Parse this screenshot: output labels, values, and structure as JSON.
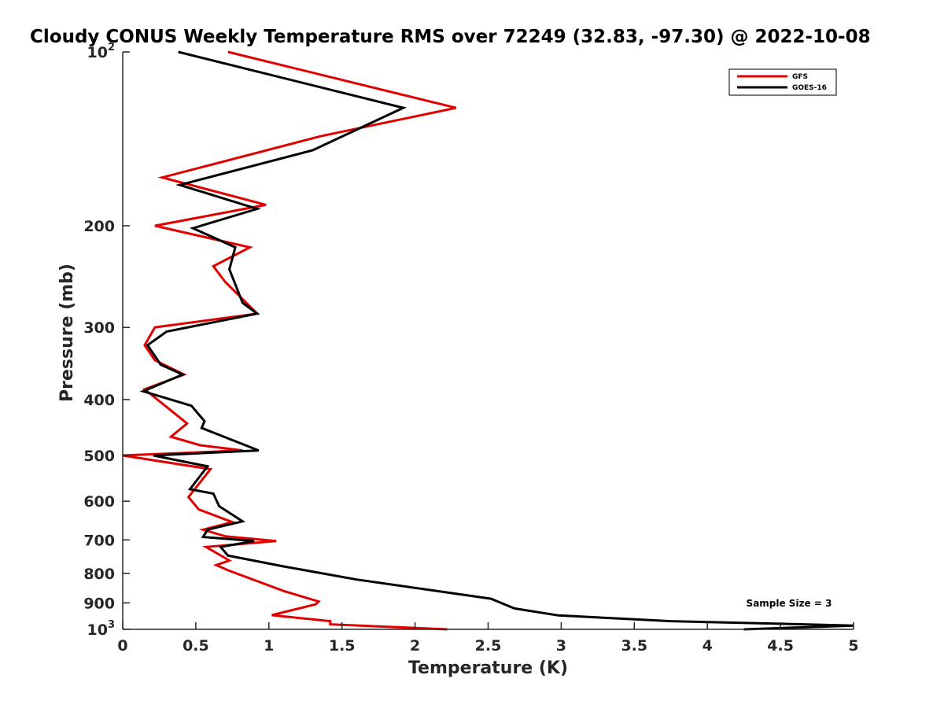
{
  "chart_data": {
    "type": "line",
    "title": "Cloudy CONUS Weekly Temperature RMS over 72249 (32.83, -97.30) @ 2022-10-08",
    "xlabel": "Temperature (K)",
    "ylabel": "Pressure (mb)",
    "xlim": [
      0,
      5
    ],
    "ylim": [
      100,
      1000
    ],
    "yscale": "log",
    "y_reversed": true,
    "grid": false,
    "legend_placement": "top-right",
    "x_ticks": [
      "0",
      "0.5",
      "1",
      "1.5",
      "2",
      "2.5",
      "3",
      "3.5",
      "4",
      "4.5",
      "5"
    ],
    "x_tick_values": [
      0,
      0.5,
      1,
      1.5,
      2,
      2.5,
      3,
      3.5,
      4,
      4.5,
      5
    ],
    "y_ticks": [
      {
        "value": 100,
        "base": "10",
        "exp": "2"
      },
      {
        "value": 200,
        "label": "200"
      },
      {
        "value": 300,
        "label": "300"
      },
      {
        "value": 400,
        "label": "400"
      },
      {
        "value": 500,
        "label": "500"
      },
      {
        "value": 600,
        "label": "600"
      },
      {
        "value": 700,
        "label": "700"
      },
      {
        "value": 800,
        "label": "800"
      },
      {
        "value": 900,
        "label": "900"
      },
      {
        "value": 1000,
        "base": "10",
        "exp": "3"
      }
    ],
    "annotation": "Sample Size = 3",
    "series": [
      {
        "name": "GFS",
        "color": "#e00000",
        "points": [
          [
            0.72,
            100
          ],
          [
            2.28,
            125
          ],
          [
            1.35,
            140
          ],
          [
            0.27,
            165
          ],
          [
            0.98,
            184
          ],
          [
            0.22,
            200
          ],
          [
            0.87,
            218
          ],
          [
            0.62,
            235
          ],
          [
            0.7,
            250
          ],
          [
            0.92,
            284
          ],
          [
            0.22,
            300
          ],
          [
            0.15,
            322
          ],
          [
            0.22,
            342
          ],
          [
            0.42,
            362
          ],
          [
            0.15,
            384
          ],
          [
            0.44,
            440
          ],
          [
            0.33,
            464
          ],
          [
            0.53,
            480
          ],
          [
            0.82,
            490
          ],
          [
            0.0,
            500
          ],
          [
            0.6,
            528
          ],
          [
            0.45,
            590
          ],
          [
            0.52,
            620
          ],
          [
            0.75,
            652
          ],
          [
            0.55,
            672
          ],
          [
            0.7,
            690
          ],
          [
            1.05,
            703
          ],
          [
            0.57,
            720
          ],
          [
            0.73,
            760
          ],
          [
            0.64,
            774
          ],
          [
            0.72,
            790
          ],
          [
            1.1,
            858
          ],
          [
            1.34,
            895
          ],
          [
            1.32,
            905
          ],
          [
            1.02,
            945
          ],
          [
            1.42,
            968
          ],
          [
            1.42,
            980
          ],
          [
            2.22,
            1000
          ]
        ]
      },
      {
        "name": "GOES-16",
        "color": "#000000",
        "points": [
          [
            0.38,
            100
          ],
          [
            1.92,
            125
          ],
          [
            1.3,
            148
          ],
          [
            0.39,
            170
          ],
          [
            0.92,
            187
          ],
          [
            0.48,
            202
          ],
          [
            0.77,
            218
          ],
          [
            0.73,
            238
          ],
          [
            0.82,
            272
          ],
          [
            0.92,
            284
          ],
          [
            0.3,
            305
          ],
          [
            0.17,
            322
          ],
          [
            0.26,
            348
          ],
          [
            0.41,
            362
          ],
          [
            0.14,
            387
          ],
          [
            0.47,
            410
          ],
          [
            0.56,
            436
          ],
          [
            0.54,
            448
          ],
          [
            0.93,
            490
          ],
          [
            0.21,
            500
          ],
          [
            0.58,
            522
          ],
          [
            0.46,
            572
          ],
          [
            0.62,
            582
          ],
          [
            0.66,
            612
          ],
          [
            0.82,
            650
          ],
          [
            0.58,
            672
          ],
          [
            0.55,
            692
          ],
          [
            0.9,
            703
          ],
          [
            0.67,
            720
          ],
          [
            0.72,
            745
          ],
          [
            1.1,
            778
          ],
          [
            1.6,
            820
          ],
          [
            2.52,
            885
          ],
          [
            2.68,
            920
          ],
          [
            2.98,
            946
          ],
          [
            3.75,
            968
          ],
          [
            5.0,
            985
          ],
          [
            4.25,
            1000
          ]
        ]
      }
    ]
  }
}
